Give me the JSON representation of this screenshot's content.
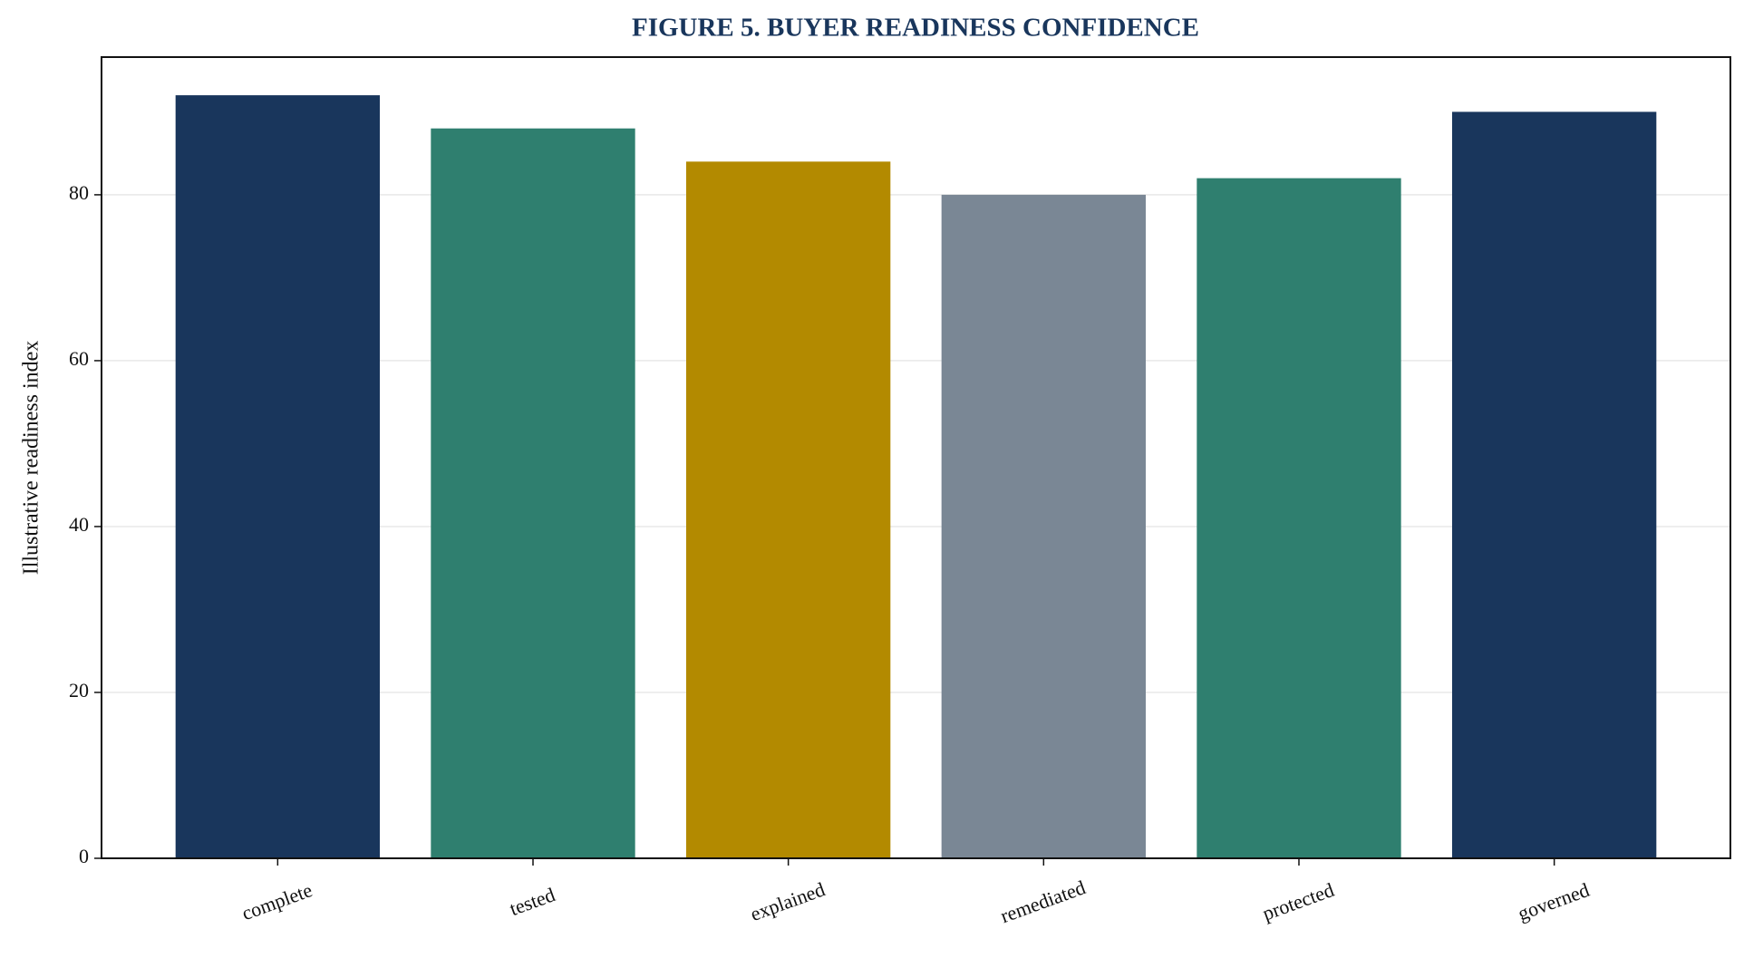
{
  "chart_data": {
    "type": "bar",
    "title": "FIGURE 5. BUYER READINESS CONFIDENCE",
    "y_label": "Illustrative readiness index",
    "categories": [
      "complete",
      "tested",
      "explained",
      "remediated",
      "protected",
      "governed"
    ],
    "values": [
      92,
      88,
      84,
      80,
      82,
      90
    ],
    "colors": [
      "#19365c",
      "#2f7f6f",
      "#b38a00",
      "#7a8795",
      "#2f7f6f",
      "#19365c"
    ],
    "ylim": [
      0,
      96.6
    ],
    "yticks": [
      0,
      20,
      40,
      60,
      80
    ],
    "grid": true
  }
}
